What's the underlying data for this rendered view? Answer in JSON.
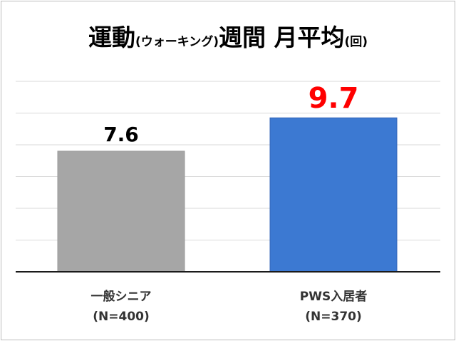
{
  "title": {
    "part1": "運動",
    "part2": "(ウォーキング)",
    "part3": "週間 月平均",
    "part4": "(回)"
  },
  "categories": [
    {
      "label": "一般シニア",
      "sub": "(N=400)"
    },
    {
      "label": "PWS入居者",
      "sub": "(N=370)"
    }
  ],
  "chart_data": {
    "type": "bar",
    "title": "運動(ウォーキング)週間 月平均(回)",
    "categories": [
      "一般シニア (N=400)",
      "PWS入居者 (N=370)"
    ],
    "values": [
      7.6,
      9.7
    ],
    "data_labels": [
      "7.6",
      "9.7"
    ],
    "ylim": [
      0,
      12
    ],
    "grid": true,
    "legend": "none",
    "colors": [
      "#a6a6a6",
      "#3c79d2"
    ],
    "label_colors": [
      "#000000",
      "#ff0000"
    ]
  }
}
